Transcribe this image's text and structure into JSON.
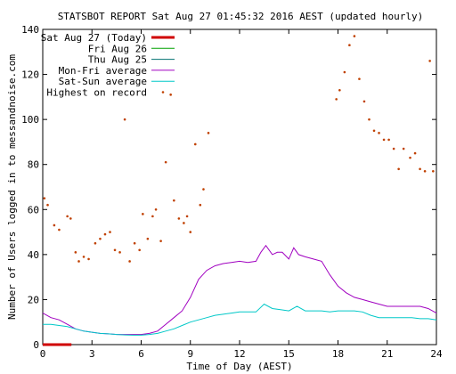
{
  "chart_data": {
    "type": "line",
    "title": "STATSBOT REPORT  Sat Aug 27 01:45:32 2016 AEST   (updated hourly)",
    "xlabel": "Time of Day  (AEST)",
    "ylabel": "Number of Users logged in to messandnoise.com",
    "xlim": [
      0,
      24
    ],
    "ylim": [
      0,
      140
    ],
    "xticks": [
      0,
      3,
      6,
      9,
      12,
      15,
      18,
      21,
      24
    ],
    "yticks": [
      0,
      20,
      40,
      60,
      80,
      100,
      120,
      140
    ],
    "grid": false,
    "legend_position": "top-left",
    "series": [
      {
        "name": "Sat Aug 27 (Today)",
        "color": "#d00000",
        "style": "thick-line",
        "x": [
          0,
          0.25,
          0.5,
          0.75,
          1.0,
          1.25,
          1.5,
          1.75
        ],
        "y": [
          0,
          0,
          0,
          0,
          0,
          0,
          0,
          0
        ]
      },
      {
        "name": "Fri Aug 26",
        "color": "#00a000",
        "style": "line",
        "x": [],
        "y": []
      },
      {
        "name": "Thu Aug 25",
        "color": "#007070",
        "style": "line",
        "x": [],
        "y": []
      },
      {
        "name": "Mon-Fri average",
        "color": "#a000c0",
        "style": "line",
        "x": [
          0,
          0.5,
          1,
          1.5,
          2,
          2.5,
          3,
          3.5,
          4,
          4.5,
          5,
          5.5,
          6,
          6.5,
          7,
          7.5,
          8,
          8.5,
          9,
          9.5,
          10,
          10.5,
          11,
          11.5,
          12,
          12.5,
          13,
          13.3,
          13.6,
          14,
          14.3,
          14.6,
          15,
          15.3,
          15.6,
          16,
          16.5,
          17,
          17.5,
          18,
          18.5,
          19,
          19.5,
          20,
          20.5,
          21,
          21.5,
          22,
          22.5,
          23,
          23.5,
          24
        ],
        "y": [
          14,
          12,
          11,
          9,
          7,
          6,
          5.5,
          5,
          4.8,
          4.5,
          4.5,
          4.5,
          4.5,
          5,
          6,
          9,
          12,
          15,
          21,
          29,
          33,
          35,
          36,
          36.5,
          37,
          36.5,
          37,
          41,
          44,
          40,
          41,
          41,
          38,
          43,
          40,
          39,
          38,
          37,
          31,
          26,
          23,
          21,
          20,
          19,
          18,
          17,
          17,
          17,
          17,
          17,
          16,
          14
        ]
      },
      {
        "name": "Sat-Sun average",
        "color": "#00c8c8",
        "style": "line",
        "x": [
          0,
          0.5,
          1,
          1.5,
          2,
          2.5,
          3,
          3.5,
          4,
          4.5,
          5,
          5.5,
          6,
          6.5,
          7,
          7.5,
          8,
          8.5,
          9,
          9.5,
          10,
          10.5,
          11,
          11.5,
          12,
          12.5,
          13,
          13.5,
          14,
          14.5,
          15,
          15.5,
          16,
          16.5,
          17,
          17.5,
          18,
          18.5,
          19,
          19.5,
          20,
          20.5,
          21,
          21.5,
          22,
          22.5,
          23,
          23.5,
          24
        ],
        "y": [
          9,
          9,
          8.5,
          8,
          7,
          6,
          5.5,
          5,
          4.8,
          4.5,
          4.3,
          4.2,
          4.2,
          4.5,
          5,
          6,
          7,
          8.5,
          10,
          11,
          12,
          13,
          13.5,
          14,
          14.5,
          14.5,
          14.5,
          18,
          16,
          15.5,
          15,
          17,
          15,
          15,
          15,
          14.5,
          15,
          15,
          15,
          14.5,
          13,
          12,
          12,
          12,
          12,
          12,
          11.5,
          11.5,
          11
        ]
      },
      {
        "name": "Highest on record",
        "color": "#c04000",
        "style": "dots",
        "x": [
          0.1,
          0.3,
          0.7,
          1.0,
          1.5,
          1.7,
          2.0,
          2.2,
          2.5,
          2.8,
          3.2,
          3.5,
          3.8,
          4.1,
          4.4,
          4.7,
          5.0,
          5.3,
          5.6,
          5.9,
          6.1,
          6.4,
          6.7,
          6.9,
          7.2,
          7.5,
          7.8,
          8.0,
          8.3,
          8.6,
          8.8,
          9.0,
          9.3,
          9.6,
          9.8,
          10.1,
          17.9,
          18.1,
          18.4,
          18.7,
          19.0,
          19.3,
          19.6,
          19.9,
          20.2,
          20.5,
          20.8,
          21.1,
          21.4,
          21.7,
          22.0,
          22.4,
          22.7,
          23.0,
          23.3,
          23.6,
          23.8
        ],
        "y": [
          65,
          62,
          53,
          51,
          57,
          56,
          41,
          37,
          39,
          38,
          45,
          47,
          49,
          50,
          42,
          41,
          100,
          37,
          45,
          42,
          58,
          47,
          57,
          60,
          46,
          81,
          111,
          64,
          56,
          54,
          57,
          50,
          89,
          62,
          69,
          94,
          109,
          113,
          121,
          133,
          137,
          118,
          108,
          100,
          95,
          94,
          91,
          91,
          87,
          78,
          87,
          83,
          85,
          78,
          77,
          126,
          77
        ]
      }
    ]
  }
}
